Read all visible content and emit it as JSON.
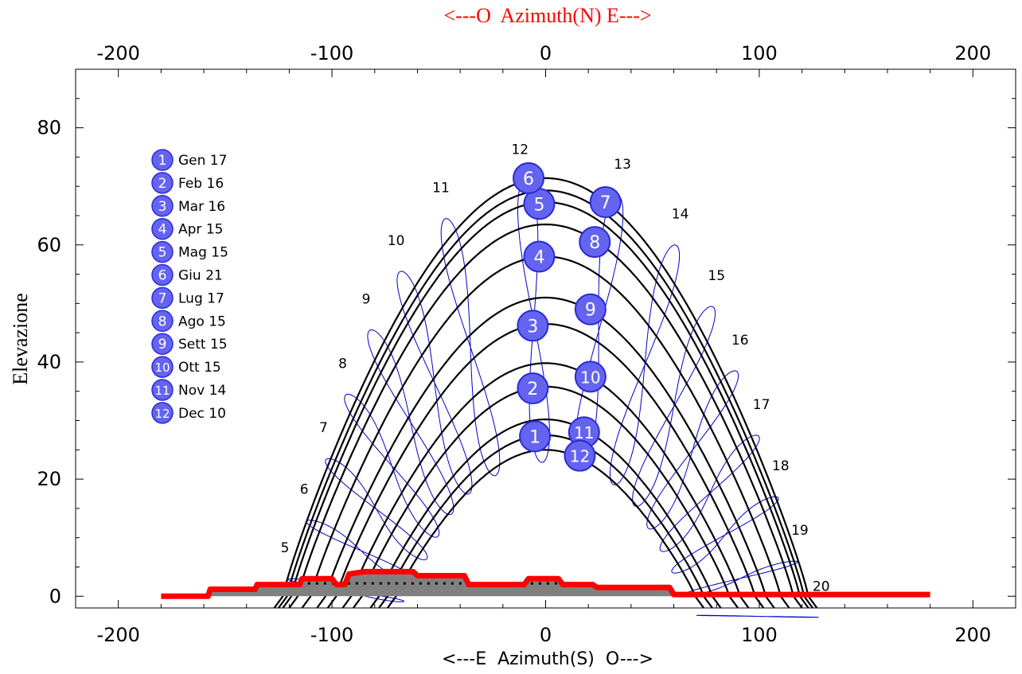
{
  "chart_data": {
    "type": "line",
    "title": "",
    "xlabel": "<---E  Azimuth(S)  O--->",
    "x2label": "<---O  Azimuth(N) E--->",
    "ylabel": "Elevazione",
    "xlim": [
      -220,
      220
    ],
    "ylim": [
      -2,
      90
    ],
    "xticks": [
      -200,
      -100,
      0,
      100,
      200
    ],
    "x2ticks": [
      -200,
      -100,
      0,
      100,
      200
    ],
    "yticks": [
      0,
      20,
      40,
      60,
      80
    ],
    "grid": false,
    "legend_position": "top-left",
    "colors": {
      "sun_path": "#000000",
      "analemma": "#0000cc",
      "marker_fill": "#6464f0",
      "marker_stroke": "#2a2ad8",
      "horizon": "#ff0000",
      "shade": "#808080",
      "x2label_color": "#ff0000"
    },
    "legend": [
      {
        "num": "1",
        "label": "Gen 17"
      },
      {
        "num": "2",
        "label": "Feb 16"
      },
      {
        "num": "3",
        "label": "Mar 16"
      },
      {
        "num": "4",
        "label": "Apr 15"
      },
      {
        "num": "5",
        "label": "Mag 15"
      },
      {
        "num": "6",
        "label": "Giu 21"
      },
      {
        "num": "7",
        "label": "Lug 17"
      },
      {
        "num": "8",
        "label": "Ago 15"
      },
      {
        "num": "9",
        "label": "Sett 15"
      },
      {
        "num": "10",
        "label": "Ott 15"
      },
      {
        "num": "11",
        "label": "Nov 14"
      },
      {
        "num": "12",
        "label": "Dec 10"
      }
    ],
    "sun_paths": [
      {
        "day": "Giu 21",
        "max_elev": 71.4,
        "half_width": 123
      },
      {
        "day": "Lug 17",
        "max_elev": 69.3,
        "half_width": 121
      },
      {
        "day": "Mag 15",
        "max_elev": 67.3,
        "half_width": 119
      },
      {
        "day": "Ago 15",
        "max_elev": 63.5,
        "half_width": 116
      },
      {
        "day": "Apr 15",
        "max_elev": 58.0,
        "half_width": 110
      },
      {
        "day": "Sett 15",
        "max_elev": 51.0,
        "half_width": 103
      },
      {
        "day": "Mar 16",
        "max_elev": 46.5,
        "half_width": 98
      },
      {
        "day": "Ott 15",
        "max_elev": 39.8,
        "half_width": 91
      },
      {
        "day": "Feb 16",
        "max_elev": 35.8,
        "half_width": 86
      },
      {
        "day": "Nov 14",
        "max_elev": 30.2,
        "half_width": 78
      },
      {
        "day": "Gen 17",
        "max_elev": 27.5,
        "half_width": 74
      },
      {
        "day": "Dec 10",
        "max_elev": 25.0,
        "half_width": 70
      }
    ],
    "markers": [
      {
        "num": "1",
        "x": -5,
        "y": 27.3
      },
      {
        "num": "2",
        "x": -6,
        "y": 35.5
      },
      {
        "num": "3",
        "x": -6,
        "y": 46.2
      },
      {
        "num": "4",
        "x": -3,
        "y": 58.0
      },
      {
        "num": "5",
        "x": -3,
        "y": 67.0
      },
      {
        "num": "6",
        "x": -8,
        "y": 71.4
      },
      {
        "num": "7",
        "x": 28,
        "y": 67.3
      },
      {
        "num": "8",
        "x": 23,
        "y": 60.5
      },
      {
        "num": "9",
        "x": 21,
        "y": 49.0
      },
      {
        "num": "10",
        "x": 21,
        "y": 37.5
      },
      {
        "num": "11",
        "x": 18,
        "y": 28.0
      },
      {
        "num": "12",
        "x": 16,
        "y": 24.0
      }
    ],
    "hour_labels": [
      {
        "hour": "5",
        "x": -122,
        "y": 7.5
      },
      {
        "hour": "6",
        "x": -113,
        "y": 17.5
      },
      {
        "hour": "7",
        "x": -104,
        "y": 28.0
      },
      {
        "hour": "8",
        "x": -95,
        "y": 39.0
      },
      {
        "hour": "9",
        "x": -84,
        "y": 50.0
      },
      {
        "hour": "10",
        "x": -70,
        "y": 60.0
      },
      {
        "hour": "11",
        "x": -49,
        "y": 69.0
      },
      {
        "hour": "12",
        "x": -12,
        "y": 75.5
      },
      {
        "hour": "13",
        "x": 36,
        "y": 73.0
      },
      {
        "hour": "14",
        "x": 63,
        "y": 64.5
      },
      {
        "hour": "15",
        "x": 80,
        "y": 54.0
      },
      {
        "hour": "16",
        "x": 91,
        "y": 43.0
      },
      {
        "hour": "17",
        "x": 101,
        "y": 32.0
      },
      {
        "hour": "18",
        "x": 110,
        "y": 21.5
      },
      {
        "hour": "19",
        "x": 119,
        "y": 10.5
      },
      {
        "hour": "20",
        "x": 129,
        "y": 0.9
      }
    ],
    "horizon_profile": [
      [
        -180,
        0
      ],
      [
        -158,
        0
      ],
      [
        -157,
        1.2
      ],
      [
        -136,
        1.2
      ],
      [
        -135,
        2.0
      ],
      [
        -115,
        2.0
      ],
      [
        -114,
        3.0
      ],
      [
        -100,
        3.0
      ],
      [
        -98,
        2.0
      ],
      [
        -94,
        2.0
      ],
      [
        -92,
        3.8
      ],
      [
        -85,
        4.2
      ],
      [
        -62,
        4.2
      ],
      [
        -60,
        3.5
      ],
      [
        -38,
        3.5
      ],
      [
        -36,
        2.0
      ],
      [
        -10,
        2.0
      ],
      [
        -8,
        3.0
      ],
      [
        6,
        3.0
      ],
      [
        8,
        2.0
      ],
      [
        22,
        2.0
      ],
      [
        24,
        1.5
      ],
      [
        58,
        1.5
      ],
      [
        60,
        0.3
      ],
      [
        180,
        0.3
      ]
    ]
  }
}
